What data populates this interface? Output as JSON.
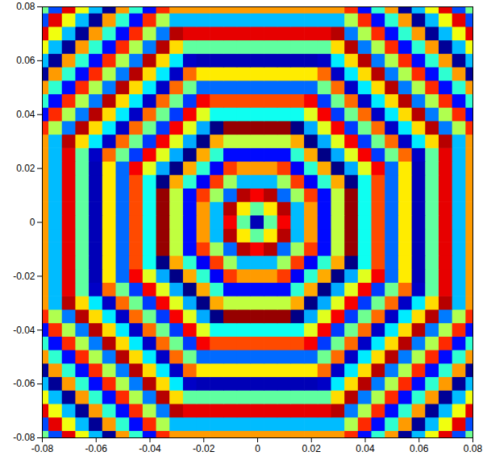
{
  "chart_data": {
    "type": "heatmap",
    "x": [
      -0.08,
      -0.075,
      -0.07,
      -0.065,
      -0.06,
      -0.055,
      -0.05,
      -0.045,
      -0.04,
      -0.035,
      -0.03,
      -0.025,
      -0.02,
      -0.015,
      -0.01,
      -0.005,
      0,
      0.005,
      0.01,
      0.015,
      0.02,
      0.025,
      0.03,
      0.035,
      0.04,
      0.045,
      0.05,
      0.055,
      0.06,
      0.065,
      0.07,
      0.075,
      0.08
    ],
    "y": [
      -0.08,
      -0.075,
      -0.07,
      -0.065,
      -0.06,
      -0.055,
      -0.05,
      -0.045,
      -0.04,
      -0.035,
      -0.03,
      -0.025,
      -0.02,
      -0.015,
      -0.01,
      -0.005,
      0,
      0.005,
      0.01,
      0.015,
      0.02,
      0.025,
      0.03,
      0.035,
      0.04,
      0.045,
      0.05,
      0.055,
      0.06,
      0.065,
      0.07,
      0.075,
      0.08
    ],
    "z": [
      [
        -0.1,
        -1.9,
        2.5,
        0.7,
        -1.2,
        -3.0,
        1.4,
        -0.5,
        -2.3,
        2.1,
        1.4,
        1.4,
        1.4,
        1.4,
        1.4,
        1.4,
        1.4,
        1.4,
        1.4,
        1.4,
        1.4,
        1.4,
        1.4,
        2.1,
        -2.3,
        -0.5,
        1.4,
        -3.0,
        -1.2,
        0.7,
        2.5,
        -1.9,
        -0.1
      ],
      [
        -1.9,
        2.5,
        0.7,
        -1.2,
        -3.0,
        1.4,
        -0.5,
        -2.3,
        2.1,
        0.3,
        -1.2,
        -1.2,
        -1.2,
        -1.2,
        -1.2,
        -1.2,
        -1.2,
        -1.2,
        -1.2,
        -1.2,
        -1.2,
        -1.2,
        -1.2,
        0.3,
        2.1,
        -2.3,
        -0.5,
        1.4,
        -3.0,
        -1.2,
        0.7,
        2.5,
        -1.9
      ],
      [
        2.5,
        0.7,
        -1.2,
        -3.0,
        1.4,
        -0.5,
        -2.3,
        2.1,
        0.3,
        -1.6,
        2.8,
        2.5,
        2.5,
        2.5,
        2.5,
        2.5,
        2.5,
        2.5,
        2.5,
        2.5,
        2.5,
        2.5,
        2.8,
        -1.6,
        0.3,
        2.1,
        -2.3,
        -0.5,
        1.4,
        -3.0,
        -1.2,
        0.7,
        2.5
      ],
      [
        0.7,
        -1.2,
        -3.0,
        1.4,
        -0.5,
        -2.3,
        2.1,
        0.3,
        -1.6,
        2.8,
        1.0,
        -0.2,
        -0.2,
        -0.2,
        -0.2,
        -0.2,
        -0.2,
        -0.2,
        -0.2,
        -0.2,
        -0.2,
        -0.2,
        1.0,
        2.8,
        -1.6,
        0.3,
        2.1,
        -2.3,
        -0.5,
        1.4,
        -3.0,
        -1.2,
        0.7
      ],
      [
        -1.2,
        -3.0,
        1.4,
        -0.5,
        -2.3,
        2.1,
        0.3,
        -1.6,
        2.8,
        1.0,
        -0.9,
        -2.7,
        -2.8,
        -2.8,
        -2.8,
        -2.8,
        -2.8,
        -2.8,
        -2.8,
        -2.8,
        -2.8,
        -2.7,
        -0.9,
        1.0,
        2.8,
        -1.6,
        0.3,
        2.1,
        -2.3,
        -0.5,
        1.4,
        -3.0,
        -1.2
      ],
      [
        -3.0,
        1.4,
        -0.5,
        -2.3,
        2.1,
        0.3,
        -1.6,
        2.8,
        1.0,
        -0.9,
        -2.7,
        1.7,
        0.9,
        0.9,
        0.9,
        0.9,
        0.9,
        0.9,
        0.9,
        0.9,
        0.9,
        1.7,
        -2.7,
        -0.9,
        1.0,
        2.8,
        -1.6,
        0.3,
        2.1,
        -2.3,
        -0.5,
        1.4,
        -3.0
      ],
      [
        1.4,
        -0.5,
        -2.3,
        2.1,
        0.3,
        -1.6,
        2.8,
        1.0,
        -0.9,
        -2.7,
        1.7,
        -0.1,
        -1.7,
        -1.7,
        -1.7,
        -1.7,
        -1.7,
        -1.7,
        -1.7,
        -1.7,
        -1.7,
        -0.1,
        1.7,
        -2.7,
        -0.9,
        1.0,
        2.8,
        -1.6,
        0.3,
        2.1,
        -2.3,
        -0.5,
        1.4
      ],
      [
        -0.5,
        -2.3,
        2.1,
        0.3,
        -1.6,
        2.8,
        1.0,
        -0.9,
        -2.7,
        1.7,
        -0.1,
        -2.0,
        2.4,
        1.9,
        1.9,
        1.9,
        1.9,
        1.9,
        1.9,
        1.9,
        2.4,
        -2.0,
        -0.1,
        1.7,
        -2.7,
        -0.9,
        1.0,
        2.8,
        -1.6,
        0.3,
        2.1,
        -2.3,
        -0.5
      ],
      [
        -2.3,
        2.1,
        0.3,
        -1.6,
        2.8,
        1.0,
        -0.9,
        -2.7,
        1.7,
        -0.1,
        -2.0,
        2.4,
        0.6,
        -0.7,
        -0.7,
        -0.7,
        -0.7,
        -0.7,
        -0.7,
        -0.7,
        0.6,
        2.4,
        -2.0,
        -0.1,
        1.7,
        -2.7,
        -0.9,
        1.0,
        2.8,
        -1.6,
        0.3,
        2.1,
        -2.3
      ],
      [
        2.1,
        0.3,
        -1.6,
        2.8,
        1.0,
        -0.9,
        -2.7,
        1.7,
        -0.1,
        -2.0,
        2.4,
        0.6,
        -1.3,
        -3.1,
        3.0,
        3.0,
        3.0,
        3.0,
        3.0,
        -3.1,
        -1.3,
        0.6,
        2.4,
        -2.0,
        -0.1,
        1.7,
        -2.7,
        -0.9,
        1.0,
        2.8,
        -1.6,
        0.3,
        2.1
      ],
      [
        1.4,
        -1.2,
        2.8,
        1.0,
        -0.9,
        -2.7,
        1.7,
        -0.1,
        -2.0,
        2.4,
        0.6,
        -1.3,
        -3.1,
        1.3,
        0.4,
        0.4,
        0.4,
        0.4,
        0.4,
        1.3,
        -3.1,
        -1.3,
        0.6,
        2.4,
        -2.0,
        -0.1,
        1.7,
        -2.7,
        -0.9,
        1.0,
        2.8,
        -1.2,
        1.4
      ],
      [
        1.4,
        -1.2,
        2.5,
        -0.2,
        -2.7,
        1.7,
        -0.1,
        -2.0,
        2.4,
        0.6,
        -1.3,
        -3.1,
        1.3,
        -0.5,
        -2.3,
        -2.3,
        -2.3,
        -2.3,
        -2.3,
        -0.5,
        1.3,
        -3.1,
        -1.3,
        0.6,
        2.4,
        -2.0,
        -0.1,
        1.7,
        -2.7,
        -0.2,
        2.5,
        -1.2,
        1.4
      ],
      [
        1.4,
        -1.2,
        2.5,
        -0.2,
        -2.8,
        0.9,
        -1.7,
        2.4,
        0.6,
        -1.3,
        -3.1,
        1.3,
        -0.5,
        -2.4,
        2.0,
        1.4,
        1.4,
        1.4,
        2.0,
        -2.4,
        -0.5,
        1.3,
        -3.1,
        -1.3,
        0.6,
        2.4,
        -1.7,
        0.9,
        -2.8,
        -0.2,
        2.5,
        -1.2,
        1.4
      ],
      [
        1.4,
        -1.2,
        2.5,
        -0.2,
        -2.8,
        0.9,
        -1.7,
        1.9,
        -0.7,
        -3.1,
        1.3,
        -0.5,
        -2.4,
        2.0,
        0.2,
        -1.2,
        -1.2,
        -1.2,
        0.2,
        2.0,
        -2.4,
        -0.5,
        1.3,
        -3.1,
        -0.7,
        1.9,
        -1.7,
        0.9,
        -2.8,
        -0.2,
        2.5,
        -1.2,
        1.4
      ],
      [
        1.4,
        -1.2,
        2.5,
        -0.2,
        -2.8,
        0.9,
        -1.7,
        1.9,
        -0.7,
        3.0,
        0.4,
        -2.3,
        2.0,
        0.2,
        -1.7,
        2.8,
        2.4,
        2.8,
        -1.7,
        0.2,
        2.0,
        -2.3,
        0.4,
        3.0,
        -0.7,
        1.9,
        -1.7,
        0.9,
        -2.8,
        -0.2,
        2.5,
        -1.2,
        1.4
      ],
      [
        1.4,
        -1.2,
        2.5,
        -0.2,
        -2.8,
        0.9,
        -1.7,
        1.9,
        -0.7,
        3.0,
        0.4,
        -2.3,
        1.4,
        -1.2,
        2.8,
        0.9,
        -0.2,
        0.9,
        2.8,
        -1.2,
        1.4,
        -2.3,
        0.4,
        3.0,
        -0.7,
        1.9,
        -1.7,
        0.9,
        -2.8,
        -0.2,
        2.5,
        -1.2,
        1.4
      ],
      [
        1.4,
        -1.2,
        2.5,
        -0.2,
        -2.8,
        0.9,
        -1.7,
        1.9,
        -0.7,
        3.0,
        0.4,
        -2.3,
        1.4,
        -1.2,
        2.4,
        -0.2,
        -2.8,
        -0.2,
        2.4,
        -1.2,
        1.4,
        -2.3,
        0.4,
        3.0,
        -0.7,
        1.9,
        -1.7,
        0.9,
        -2.8,
        -0.2,
        2.5,
        -1.2,
        1.4
      ],
      [
        1.4,
        -1.2,
        2.5,
        -0.2,
        -2.8,
        0.9,
        -1.7,
        1.9,
        -0.7,
        3.0,
        0.4,
        -2.3,
        1.4,
        -1.2,
        2.8,
        0.9,
        -0.2,
        0.9,
        2.8,
        -1.2,
        1.4,
        -2.3,
        0.4,
        3.0,
        -0.7,
        1.9,
        -1.7,
        0.9,
        -2.8,
        -0.2,
        2.5,
        -1.2,
        1.4
      ],
      [
        1.4,
        -1.2,
        2.5,
        -0.2,
        -2.8,
        0.9,
        -1.7,
        1.9,
        -0.7,
        3.0,
        0.4,
        -2.3,
        2.0,
        0.2,
        -1.7,
        2.8,
        2.4,
        2.8,
        -1.7,
        0.2,
        2.0,
        -2.3,
        0.4,
        3.0,
        -0.7,
        1.9,
        -1.7,
        0.9,
        -2.8,
        -0.2,
        2.5,
        -1.2,
        1.4
      ],
      [
        1.4,
        -1.2,
        2.5,
        -0.2,
        -2.8,
        0.9,
        -1.7,
        1.9,
        -0.7,
        -3.1,
        1.3,
        -0.5,
        -2.4,
        2.0,
        0.2,
        -1.2,
        -1.2,
        -1.2,
        0.2,
        2.0,
        -2.4,
        -0.5,
        1.3,
        -3.1,
        -0.7,
        1.9,
        -1.7,
        0.9,
        -2.8,
        -0.2,
        2.5,
        -1.2,
        1.4
      ],
      [
        1.4,
        -1.2,
        2.5,
        -0.2,
        -2.8,
        0.9,
        -1.7,
        2.4,
        0.6,
        -1.3,
        -3.1,
        1.3,
        -0.5,
        -2.4,
        2.0,
        1.4,
        1.4,
        1.4,
        2.0,
        -2.4,
        -0.5,
        1.3,
        -3.1,
        -1.3,
        0.6,
        2.4,
        -1.7,
        0.9,
        -2.8,
        -0.2,
        2.5,
        -1.2,
        1.4
      ],
      [
        1.4,
        -1.2,
        2.5,
        -0.2,
        -2.7,
        1.7,
        -0.1,
        -2.0,
        2.4,
        0.6,
        -1.3,
        -3.1,
        1.3,
        -0.5,
        -2.3,
        -2.3,
        -2.3,
        -2.3,
        -2.3,
        -0.5,
        1.3,
        -3.1,
        -1.3,
        0.6,
        2.4,
        -2.0,
        -0.1,
        1.7,
        -2.7,
        -0.2,
        2.5,
        -1.2,
        1.4
      ],
      [
        1.4,
        -1.2,
        2.8,
        1.0,
        -0.9,
        -2.7,
        1.7,
        -0.1,
        -2.0,
        2.4,
        0.6,
        -1.3,
        -3.1,
        1.3,
        0.4,
        0.4,
        0.4,
        0.4,
        0.4,
        1.3,
        -3.1,
        -1.3,
        0.6,
        2.4,
        -2.0,
        -0.1,
        1.7,
        -2.7,
        -0.9,
        1.0,
        2.8,
        -1.2,
        1.4
      ],
      [
        2.1,
        0.3,
        -1.6,
        2.8,
        1.0,
        -0.9,
        -2.7,
        1.7,
        -0.1,
        -2.0,
        2.4,
        0.6,
        -1.3,
        -3.1,
        3.0,
        3.0,
        3.0,
        3.0,
        3.0,
        -3.1,
        -1.3,
        0.6,
        2.4,
        -2.0,
        -0.1,
        1.7,
        -2.7,
        -0.9,
        1.0,
        2.8,
        -1.6,
        0.3,
        2.1
      ],
      [
        -2.3,
        2.1,
        0.3,
        -1.6,
        2.8,
        1.0,
        -0.9,
        -2.7,
        1.7,
        -0.1,
        -2.0,
        2.4,
        0.6,
        -0.7,
        -0.7,
        -0.7,
        -0.7,
        -0.7,
        -0.7,
        -0.7,
        0.6,
        2.4,
        -2.0,
        -0.1,
        1.7,
        -2.7,
        -0.9,
        1.0,
        2.8,
        -1.6,
        0.3,
        2.1,
        -2.3
      ],
      [
        -0.5,
        -2.3,
        2.1,
        0.3,
        -1.6,
        2.8,
        1.0,
        -0.9,
        -2.7,
        1.7,
        -0.1,
        -2.0,
        2.4,
        1.9,
        1.9,
        1.9,
        1.9,
        1.9,
        1.9,
        1.9,
        2.4,
        -2.0,
        -0.1,
        1.7,
        -2.7,
        -0.9,
        1.0,
        2.8,
        -1.6,
        0.3,
        2.1,
        -2.3,
        -0.5
      ],
      [
        1.4,
        -0.5,
        -2.3,
        2.1,
        0.3,
        -1.6,
        2.8,
        1.0,
        -0.9,
        -2.7,
        1.7,
        -0.1,
        -1.7,
        -1.7,
        -1.7,
        -1.7,
        -1.7,
        -1.7,
        -1.7,
        -1.7,
        -1.7,
        -0.1,
        1.7,
        -2.7,
        -0.9,
        1.0,
        2.8,
        -1.6,
        0.3,
        2.1,
        -2.3,
        -0.5,
        1.4
      ],
      [
        -3.0,
        1.4,
        -0.5,
        -2.3,
        2.1,
        0.3,
        -1.6,
        2.8,
        1.0,
        -0.9,
        -2.7,
        1.7,
        0.9,
        0.9,
        0.9,
        0.9,
        0.9,
        0.9,
        0.9,
        0.9,
        0.9,
        1.7,
        -2.7,
        -0.9,
        1.0,
        2.8,
        -1.6,
        0.3,
        2.1,
        -2.3,
        -0.5,
        1.4,
        -3.0
      ],
      [
        -1.2,
        -3.0,
        1.4,
        -0.5,
        -2.3,
        2.1,
        0.3,
        -1.6,
        2.8,
        1.0,
        -0.9,
        -2.7,
        -2.8,
        -2.8,
        -2.8,
        -2.8,
        -2.8,
        -2.8,
        -2.8,
        -2.8,
        -2.8,
        -2.7,
        -0.9,
        1.0,
        2.8,
        -1.6,
        0.3,
        2.1,
        -2.3,
        -0.5,
        1.4,
        -3.0,
        -1.2
      ],
      [
        0.7,
        -1.2,
        -3.0,
        1.4,
        -0.5,
        -2.3,
        2.1,
        0.3,
        -1.6,
        2.8,
        1.0,
        -0.2,
        -0.2,
        -0.2,
        -0.2,
        -0.2,
        -0.2,
        -0.2,
        -0.2,
        -0.2,
        -0.2,
        -0.2,
        1.0,
        2.8,
        -1.6,
        0.3,
        2.1,
        -2.3,
        -0.5,
        1.4,
        -3.0,
        -1.2,
        0.7
      ],
      [
        2.5,
        0.7,
        -1.2,
        -3.0,
        1.4,
        -0.5,
        -2.3,
        2.1,
        0.3,
        -1.6,
        2.8,
        2.5,
        2.5,
        2.5,
        2.5,
        2.5,
        2.5,
        2.5,
        2.5,
        2.5,
        2.5,
        2.5,
        2.8,
        -1.6,
        0.3,
        2.1,
        -2.3,
        -0.5,
        1.4,
        -3.0,
        -1.2,
        0.7,
        2.5
      ],
      [
        -1.9,
        2.5,
        0.7,
        -1.2,
        -3.0,
        1.4,
        -0.5,
        -2.3,
        2.1,
        0.3,
        -1.2,
        -1.2,
        -1.2,
        -1.2,
        -1.2,
        -1.2,
        -1.2,
        -1.2,
        -1.2,
        -1.2,
        -1.2,
        -1.2,
        -1.2,
        0.3,
        2.1,
        -2.3,
        -0.5,
        1.4,
        -3.0,
        -1.2,
        0.7,
        2.5,
        -1.9
      ],
      [
        -0.1,
        -1.9,
        2.5,
        0.7,
        -1.2,
        -3.0,
        1.4,
        -0.5,
        -2.3,
        2.1,
        1.4,
        1.4,
        1.4,
        1.4,
        1.4,
        1.4,
        1.4,
        1.4,
        1.4,
        1.4,
        1.4,
        1.4,
        1.4,
        2.1,
        -2.3,
        -0.5,
        1.4,
        -3.0,
        -1.2,
        0.7,
        2.5,
        -1.9,
        -0.1
      ]
    ],
    "zlim": [
      -3.14,
      3.14
    ],
    "xlim": [
      -0.08,
      0.08
    ],
    "ylim": [
      -0.08,
      0.08
    ],
    "xticks": [
      -0.08,
      -0.06,
      -0.04,
      -0.02,
      0,
      0.02,
      0.04,
      0.06,
      0.08
    ],
    "yticks": [
      -0.08,
      -0.06,
      -0.04,
      -0.02,
      0,
      0.02,
      0.04,
      0.06,
      0.08
    ],
    "grid": false
  }
}
